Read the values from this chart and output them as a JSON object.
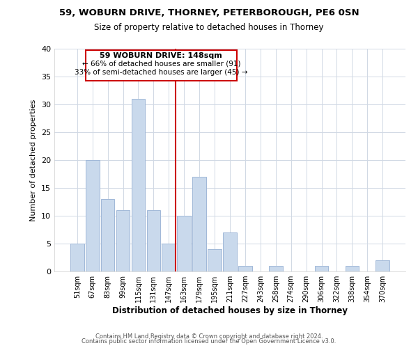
{
  "title1": "59, WOBURN DRIVE, THORNEY, PETERBOROUGH, PE6 0SN",
  "title2": "Size of property relative to detached houses in Thorney",
  "xlabel": "Distribution of detached houses by size in Thorney",
  "ylabel": "Number of detached properties",
  "bar_labels": [
    "51sqm",
    "67sqm",
    "83sqm",
    "99sqm",
    "115sqm",
    "131sqm",
    "147sqm",
    "163sqm",
    "179sqm",
    "195sqm",
    "211sqm",
    "227sqm",
    "243sqm",
    "258sqm",
    "274sqm",
    "290sqm",
    "306sqm",
    "322sqm",
    "338sqm",
    "354sqm",
    "370sqm"
  ],
  "bar_values": [
    5,
    20,
    13,
    11,
    31,
    11,
    5,
    10,
    17,
    4,
    7,
    1,
    0,
    1,
    0,
    0,
    1,
    0,
    1,
    0,
    2
  ],
  "highlight_index": 6,
  "bar_color": "#c9d9ec",
  "bar_edge_color": "#a0b8d8",
  "highlight_line_color": "#cc0000",
  "annotation_box_edge": "#cc0000",
  "annotation_text_line1": "59 WOBURN DRIVE: 148sqm",
  "annotation_text_line2": "← 66% of detached houses are smaller (91)",
  "annotation_text_line3": "33% of semi-detached houses are larger (45) →",
  "ylim": [
    0,
    40
  ],
  "yticks": [
    0,
    5,
    10,
    15,
    20,
    25,
    30,
    35,
    40
  ],
  "footer1": "Contains HM Land Registry data © Crown copyright and database right 2024.",
  "footer2": "Contains public sector information licensed under the Open Government Licence v3.0."
}
